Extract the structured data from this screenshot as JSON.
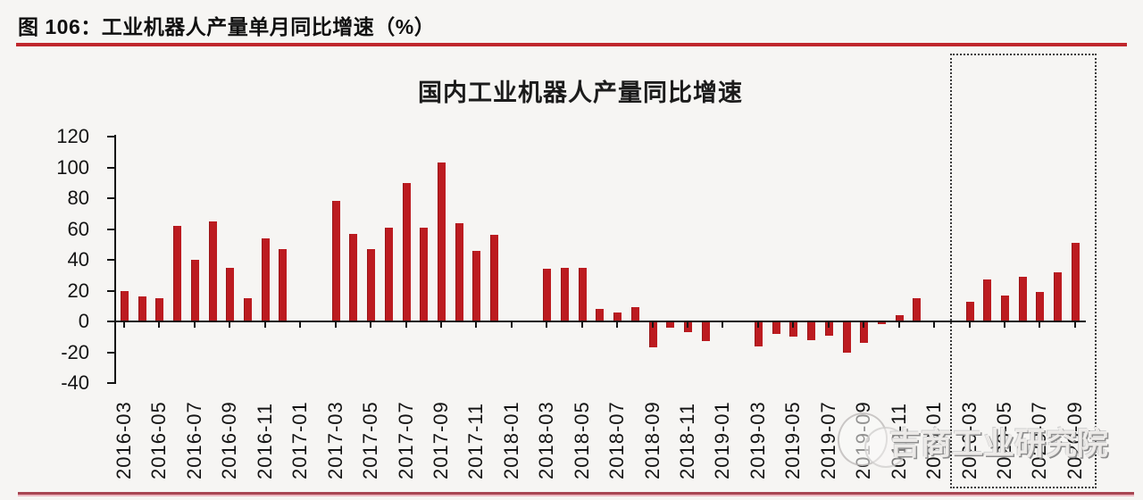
{
  "page": {
    "figure_caption": "图 106：工业机器人产量单月同比增速（%）",
    "accent_color": "#c0272d",
    "footer_rule_color": "#a84652"
  },
  "chart_data": {
    "type": "bar",
    "title": "国内工业机器人产量同比增速",
    "unit": "%",
    "bar_color": "#bc1b20",
    "ylim": [
      -40,
      120
    ],
    "yticks": [
      120,
      100,
      80,
      60,
      40,
      20,
      0,
      -20,
      -40
    ],
    "x_tick_every": 2,
    "grid": false,
    "legend": "none",
    "categories": [
      "2016-03",
      "2016-04",
      "2016-05",
      "2016-06",
      "2016-07",
      "2016-08",
      "2016-09",
      "2016-10",
      "2016-11",
      "2016-12",
      "2017-01",
      "2017-02",
      "2017-03",
      "2017-04",
      "2017-05",
      "2017-06",
      "2017-07",
      "2017-08",
      "2017-09",
      "2017-10",
      "2017-11",
      "2017-12",
      "2018-01",
      "2018-02",
      "2018-03",
      "2018-04",
      "2018-05",
      "2018-06",
      "2018-07",
      "2018-08",
      "2018-09",
      "2018-10",
      "2018-11",
      "2018-12",
      "2019-01",
      "2019-02",
      "2019-03",
      "2019-04",
      "2019-05",
      "2019-06",
      "2019-07",
      "2019-08",
      "2019-09",
      "2019-10",
      "2019-11",
      "2019-12",
      "2020-01",
      "2020-02",
      "2020-03",
      "2020-04",
      "2020-05",
      "2020-06",
      "2020-07",
      "2020-08",
      "2020-09"
    ],
    "values": [
      20,
      16,
      15,
      62,
      40,
      65,
      35,
      15,
      54,
      47,
      null,
      null,
      78,
      57,
      47,
      61,
      90,
      61,
      103,
      64,
      46,
      56,
      null,
      null,
      34,
      35,
      35,
      8,
      6,
      9,
      -17,
      -4,
      -7,
      -13,
      null,
      null,
      -16,
      -8,
      -10,
      -12,
      -9,
      -20,
      -14,
      -2,
      4,
      15,
      null,
      null,
      13,
      27,
      17,
      29,
      19,
      32,
      51
    ],
    "highlight_box": {
      "start": "2020-03",
      "end": "2020-09",
      "start_index": 48,
      "end_index": 54,
      "style": "dotted-rectangle"
    }
  },
  "watermark": {
    "text": "吉商工业研究院"
  }
}
